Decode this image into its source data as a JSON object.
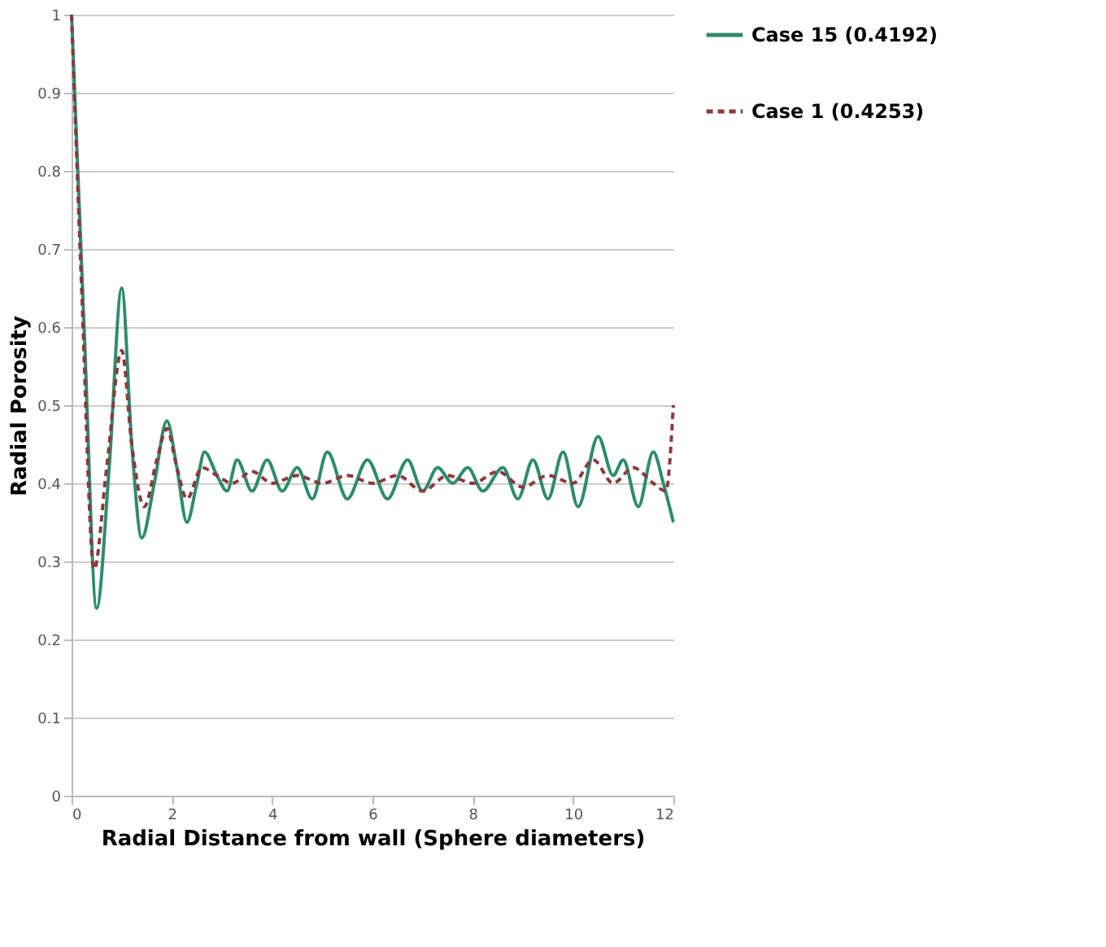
{
  "chart_data": {
    "type": "line",
    "xlabel": "Radial Distance from wall (Sphere diameters)",
    "ylabel": "Radial  Porosity",
    "xlim": [
      0,
      12
    ],
    "xticks": [
      0,
      2,
      4,
      6,
      8,
      10,
      12
    ],
    "ylim": [
      0,
      1
    ],
    "yticks": [
      0,
      0.1,
      0.2,
      0.3,
      0.4,
      0.5,
      0.6,
      0.7,
      0.8,
      0.9,
      1
    ],
    "grid": "y",
    "legend": "right",
    "series": [
      {
        "name": "Case 15 (0.4192)",
        "color": "#2e8b6e",
        "line_style": "solid",
        "x": [
          0,
          0.25,
          0.5,
          0.75,
          1.0,
          1.2,
          1.4,
          1.65,
          1.9,
          2.1,
          2.3,
          2.5,
          2.65,
          2.9,
          3.1,
          3.3,
          3.6,
          3.9,
          4.2,
          4.5,
          4.8,
          5.1,
          5.5,
          5.9,
          6.3,
          6.7,
          7.0,
          7.3,
          7.6,
          7.9,
          8.2,
          8.6,
          8.9,
          9.2,
          9.5,
          9.8,
          10.1,
          10.5,
          10.8,
          11.0,
          11.3,
          11.6,
          11.8,
          12
        ],
        "values": [
          1.0,
          0.6,
          0.24,
          0.42,
          0.65,
          0.45,
          0.33,
          0.4,
          0.48,
          0.42,
          0.35,
          0.4,
          0.44,
          0.41,
          0.39,
          0.43,
          0.39,
          0.43,
          0.39,
          0.42,
          0.38,
          0.44,
          0.38,
          0.43,
          0.38,
          0.43,
          0.39,
          0.42,
          0.4,
          0.42,
          0.39,
          0.42,
          0.38,
          0.43,
          0.38,
          0.44,
          0.37,
          0.46,
          0.41,
          0.43,
          0.37,
          0.44,
          0.4,
          0.35
        ]
      },
      {
        "name": "Case 1 (0.4253)",
        "color": "#8b3a3a",
        "line_style": "dashed",
        "x": [
          0,
          0.2,
          0.45,
          0.7,
          1.0,
          1.2,
          1.45,
          1.7,
          1.9,
          2.1,
          2.3,
          2.6,
          2.9,
          3.2,
          3.6,
          4.0,
          4.5,
          5.0,
          5.5,
          6.0,
          6.5,
          7.0,
          7.5,
          8.0,
          8.5,
          9.0,
          9.5,
          10.0,
          10.4,
          10.8,
          11.2,
          11.6,
          11.85,
          12
        ],
        "values": [
          1.0,
          0.65,
          0.29,
          0.42,
          0.57,
          0.45,
          0.37,
          0.43,
          0.47,
          0.42,
          0.38,
          0.42,
          0.41,
          0.4,
          0.415,
          0.4,
          0.41,
          0.4,
          0.41,
          0.4,
          0.41,
          0.39,
          0.41,
          0.4,
          0.415,
          0.395,
          0.41,
          0.4,
          0.43,
          0.4,
          0.42,
          0.4,
          0.39,
          0.5
        ]
      }
    ]
  }
}
